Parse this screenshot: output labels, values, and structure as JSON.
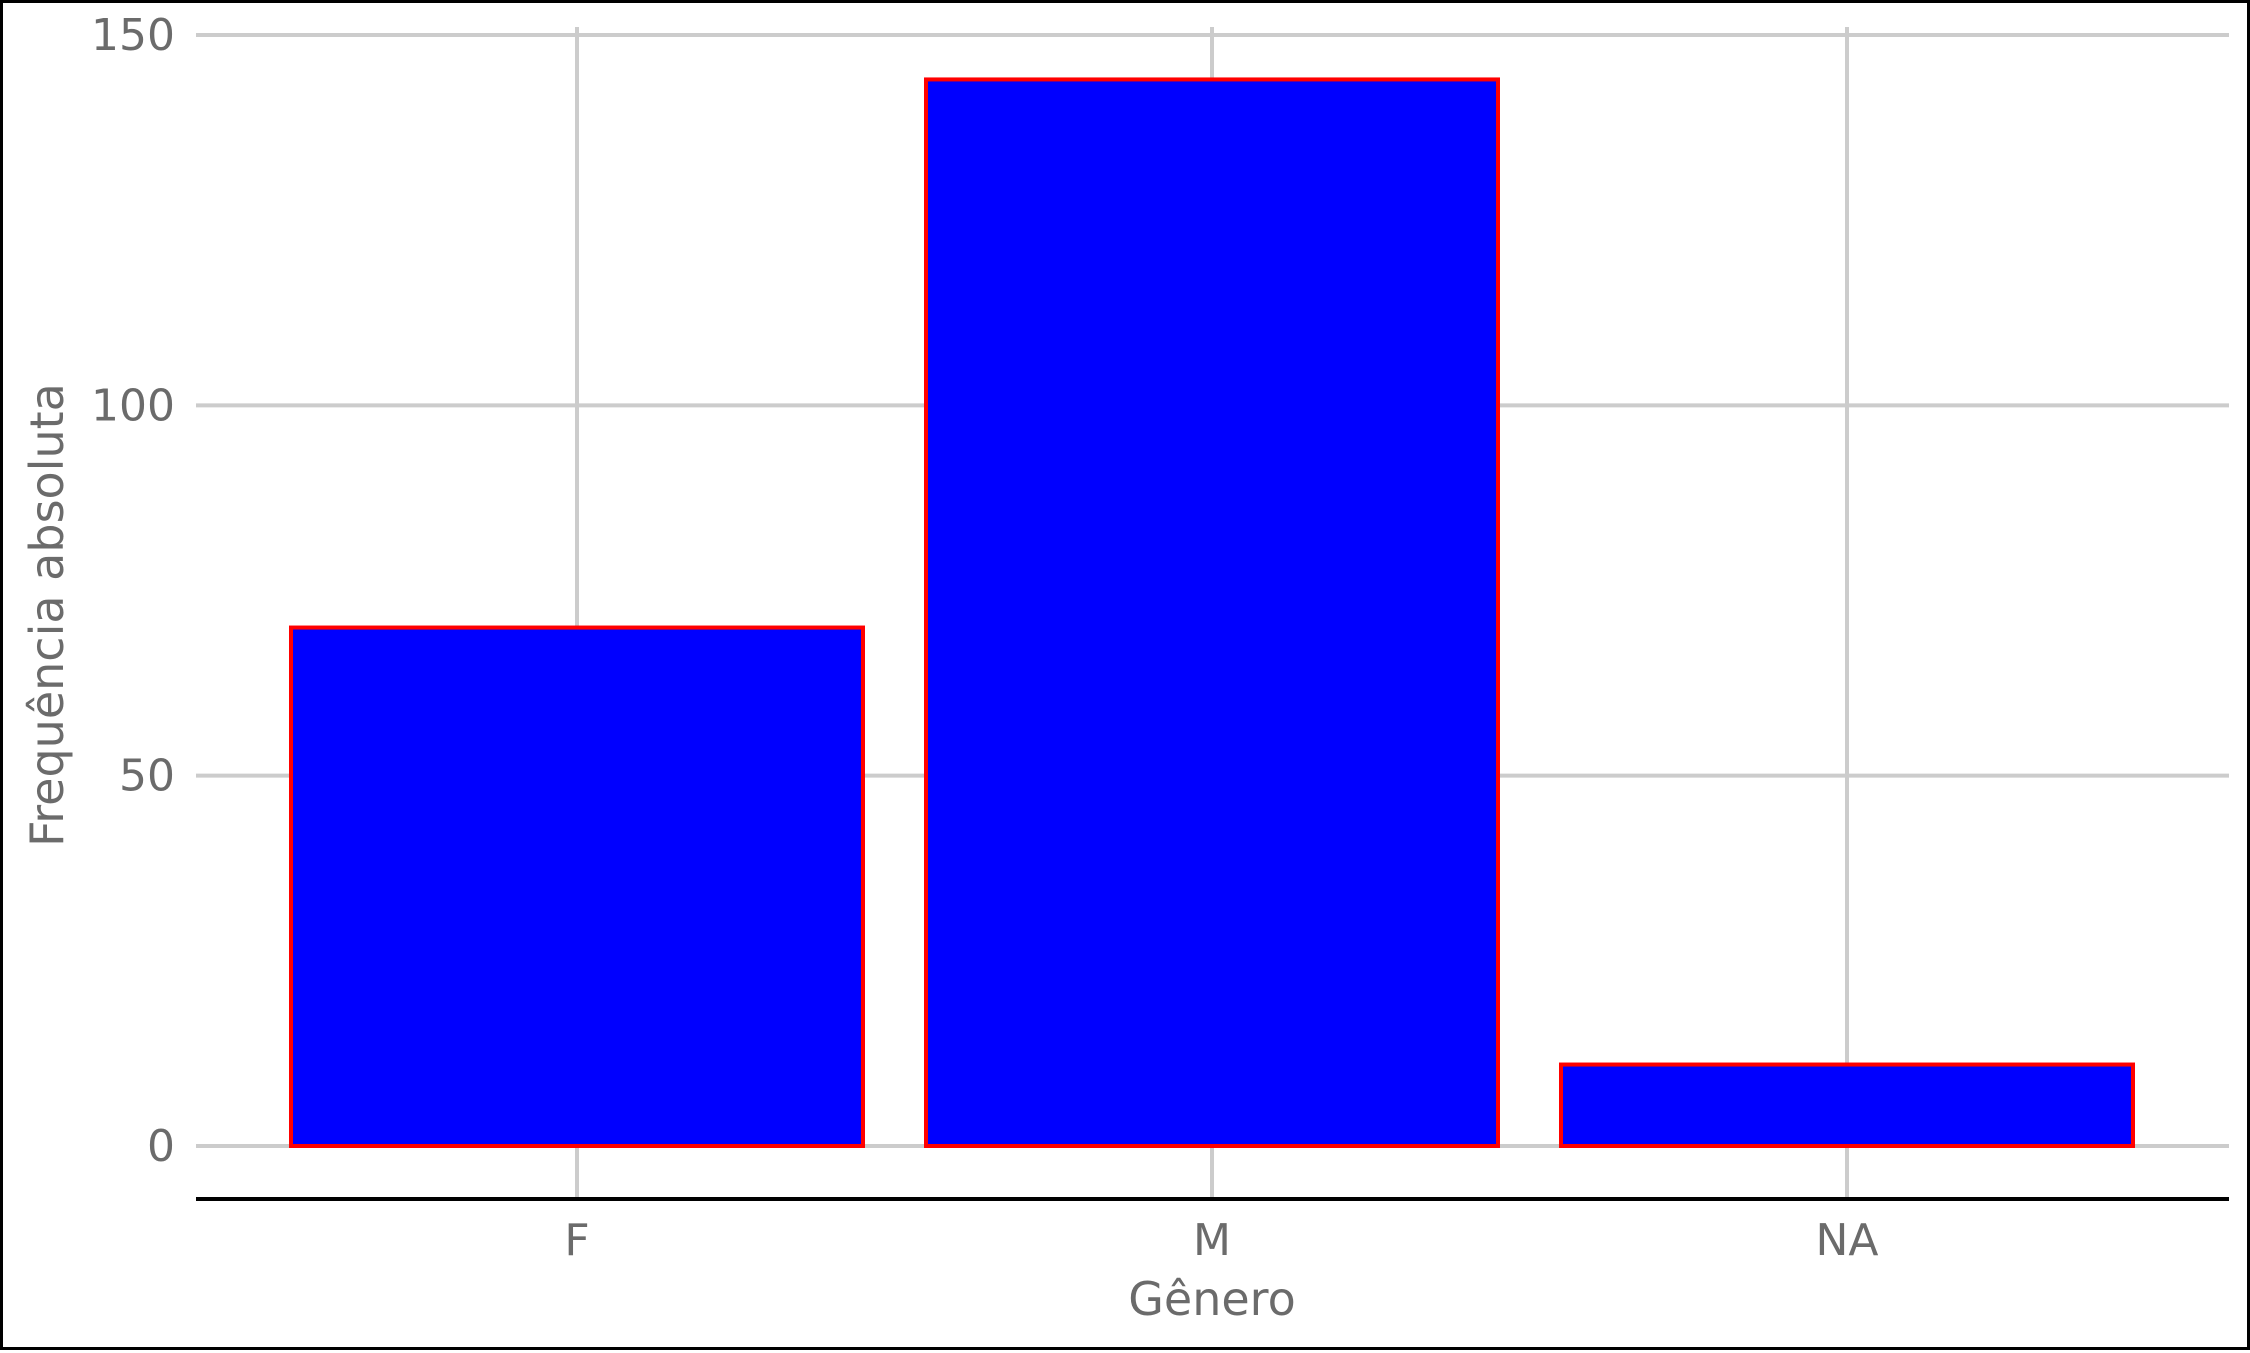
{
  "chart_data": {
    "type": "bar",
    "title": "",
    "xlabel": "Gênero",
    "ylabel": "Frequência absoluta",
    "categories": [
      "F",
      "M",
      "NA"
    ],
    "values": [
      70,
      144,
      11
    ],
    "ylim": [
      0,
      150
    ],
    "yticks": [
      0,
      50,
      100,
      150
    ],
    "ytick_labels": [
      "0",
      "50",
      "100",
      "150"
    ],
    "grid": true,
    "legend": "none",
    "colors": {
      "bar_fill": "#0000ff",
      "bar_stroke": "#ff0000",
      "grid": "#cccccc",
      "axis_line": "#000000",
      "text": "#6b6b6b"
    }
  }
}
